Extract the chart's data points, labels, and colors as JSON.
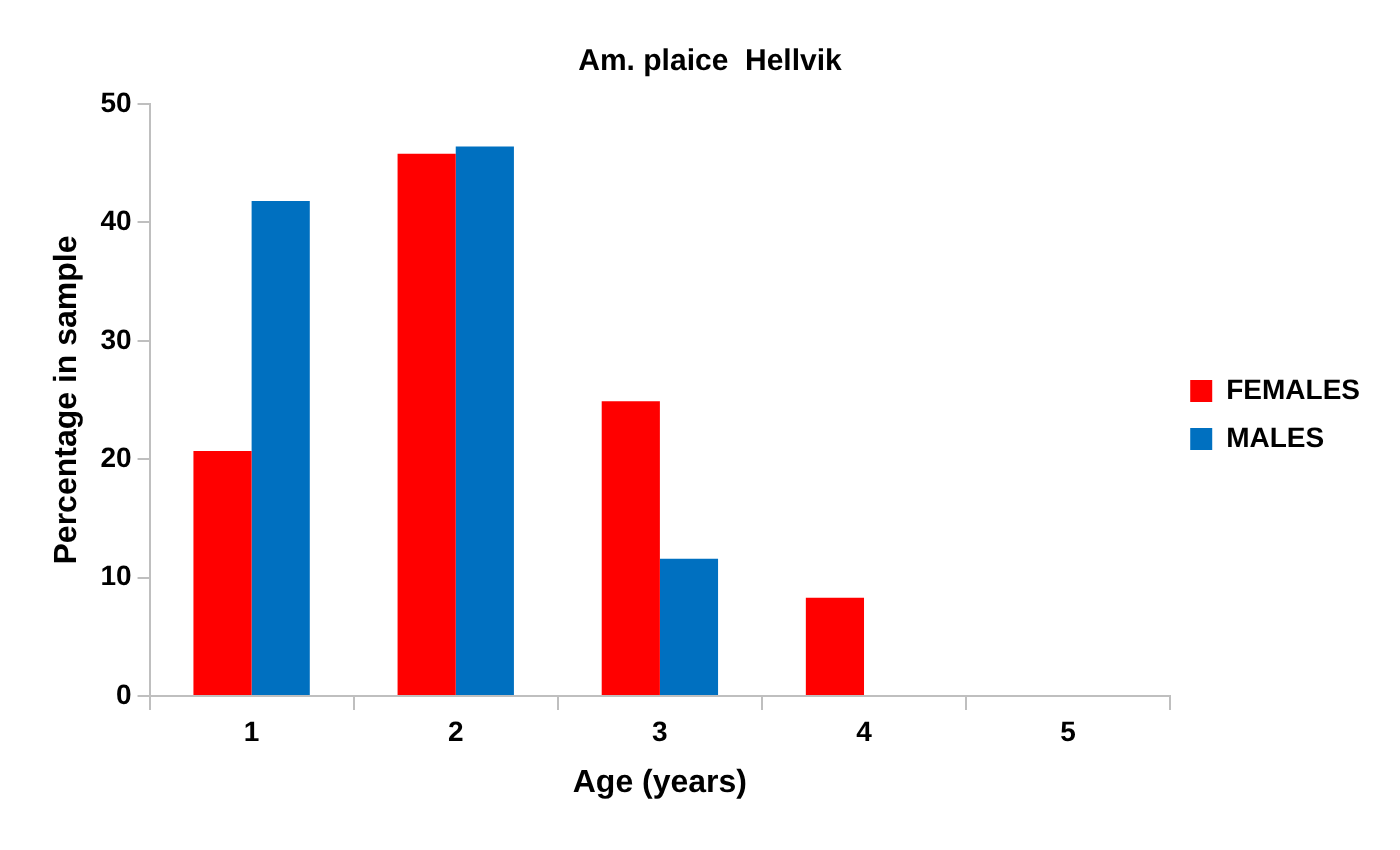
{
  "chart_data": {
    "type": "bar",
    "title": "Am. plaice  Hellvik",
    "xlabel": "Age (years)",
    "ylabel": "Percentage in sample",
    "categories": [
      "1",
      "2",
      "3",
      "4",
      "5"
    ],
    "series": [
      {
        "name": "FEMALES",
        "color": "#ff0000",
        "values": [
          20.7,
          45.8,
          24.9,
          8.3,
          0
        ]
      },
      {
        "name": "MALES",
        "color": "#0070c0",
        "values": [
          41.8,
          46.4,
          11.6,
          0,
          0
        ]
      }
    ],
    "ylim": [
      0,
      50
    ],
    "yticks": [
      0,
      10,
      20,
      30,
      40,
      50
    ],
    "grid": false,
    "legend": "right"
  }
}
